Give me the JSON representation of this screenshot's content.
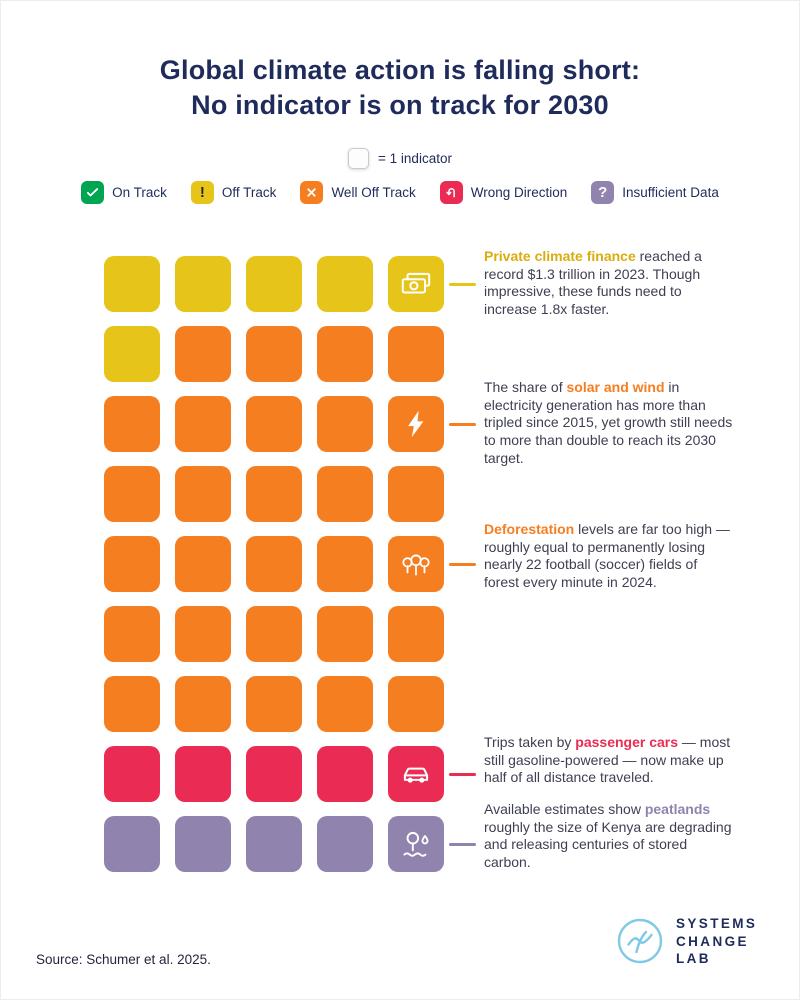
{
  "title": {
    "line1": "Global climate action is falling short:",
    "line2": "No indicator is on track for 2030"
  },
  "unit_legend_label": "= 1 indicator",
  "legend": {
    "items": [
      {
        "label": "On Track",
        "key": "on-track",
        "icon": "check-icon"
      },
      {
        "label": "Off Track",
        "key": "off-track",
        "icon": "exclamation-icon"
      },
      {
        "label": "Well Off Track",
        "key": "well-off-track",
        "icon": "x-icon"
      },
      {
        "label": "Wrong Direction",
        "key": "wrong-direction",
        "icon": "u-turn-icon"
      },
      {
        "label": "Insufficient Data",
        "key": "insufficient-data",
        "icon": "question-icon"
      }
    ]
  },
  "colors": {
    "on-track": "#00a551",
    "off-track": "#e7c419",
    "off-track-text": "#d9ad0e",
    "well-off-track": "#f57e20",
    "wrong-direction": "#ea2b53",
    "insufficient-data": "#9083ad",
    "navy": "#1f2b5b",
    "body-text": "#3e3f52",
    "logo-blue": "#7fc9e6"
  },
  "chart_data": {
    "type": "waffle",
    "title": "Global climate action is falling short: No indicator is on track for 2030",
    "unit": "1 square = 1 indicator",
    "columns": 5,
    "legend_position": "top",
    "categories": [
      "On Track",
      "Off Track",
      "Well Off Track",
      "Wrong Direction",
      "Insufficient Data"
    ],
    "counts": [
      0,
      6,
      29,
      5,
      5
    ],
    "total_indicators": 45,
    "grid_rows": [
      [
        "off-track",
        "off-track",
        "off-track",
        "off-track",
        "off-track"
      ],
      [
        "off-track",
        "well-off-track",
        "well-off-track",
        "well-off-track",
        "well-off-track"
      ],
      [
        "well-off-track",
        "well-off-track",
        "well-off-track",
        "well-off-track",
        "well-off-track"
      ],
      [
        "well-off-track",
        "well-off-track",
        "well-off-track",
        "well-off-track",
        "well-off-track"
      ],
      [
        "well-off-track",
        "well-off-track",
        "well-off-track",
        "well-off-track",
        "well-off-track"
      ],
      [
        "well-off-track",
        "well-off-track",
        "well-off-track",
        "well-off-track",
        "well-off-track"
      ],
      [
        "well-off-track",
        "well-off-track",
        "well-off-track",
        "well-off-track",
        "well-off-track"
      ],
      [
        "wrong-direction",
        "wrong-direction",
        "wrong-direction",
        "wrong-direction",
        "wrong-direction"
      ],
      [
        "insufficient-data",
        "insufficient-data",
        "insufficient-data",
        "insufficient-data",
        "insufficient-data"
      ]
    ],
    "icon_cells": [
      {
        "row": 0,
        "col": 4,
        "icon": "money-icon"
      },
      {
        "row": 2,
        "col": 4,
        "icon": "lightning-icon"
      },
      {
        "row": 4,
        "col": 4,
        "icon": "trees-icon"
      },
      {
        "row": 7,
        "col": 4,
        "icon": "car-icon"
      },
      {
        "row": 8,
        "col": 4,
        "icon": "peatland-icon"
      }
    ]
  },
  "annotations": [
    {
      "before": "",
      "highlight": "Private climate finance",
      "after": " reached a record $1.3 trillion in 2023. Though impressive, these funds need to increase 1.8x faster.",
      "color_key": "off-track-text"
    },
    {
      "before": "The share of ",
      "highlight": "solar and wind",
      "after": " in electricity generation has more than tripled since 2015, yet growth still needs to more than double to reach its 2030 target.",
      "color_key": "well-off-track"
    },
    {
      "before": "",
      "highlight": "Deforestation",
      "after": " levels are far too high — roughly equal to permanently losing nearly 22 football (soccer) fields of forest every minute in 2024.",
      "color_key": "well-off-track"
    },
    {
      "before": "Trips taken by ",
      "highlight": "passenger cars",
      "after": " — most still gasoline-powered — now make up half of all distance traveled.",
      "color_key": "wrong-direction"
    },
    {
      "before": "Available estimates show ",
      "highlight": "peatlands",
      "after": " roughly the size of Kenya are degrading and releasing centuries of stored carbon.",
      "color_key": "insufficient-data"
    }
  ],
  "source": "Source: Schumer et al. 2025.",
  "brand": {
    "line1": "SYSTEMS",
    "line2": "CHANGE",
    "line3": "LAB"
  }
}
